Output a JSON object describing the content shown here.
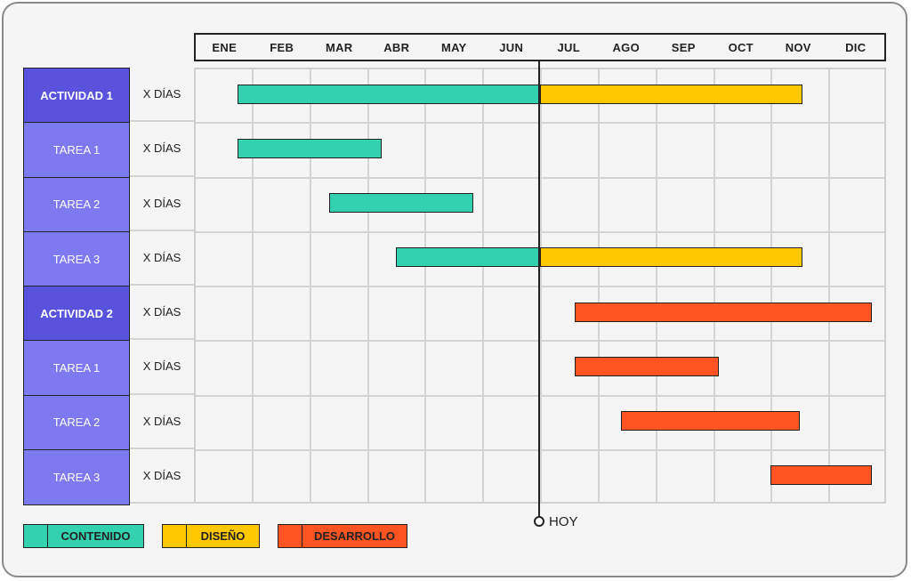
{
  "months": [
    "ENE",
    "FEB",
    "MAR",
    "ABR",
    "MAY",
    "JUN",
    "JUL",
    "AGO",
    "SEP",
    "OCT",
    "NOV",
    "DIC"
  ],
  "rows": [
    {
      "label": "ACTIVIDAD 1",
      "kind": "activity",
      "duration": "X DÍAS"
    },
    {
      "label": "TAREA 1",
      "kind": "task",
      "duration": "X DÍAS"
    },
    {
      "label": "TAREA 2",
      "kind": "task",
      "duration": "X DÍAS"
    },
    {
      "label": "TAREA 3",
      "kind": "task",
      "duration": "X DÍAS"
    },
    {
      "label": "ACTIVIDAD 2",
      "kind": "activity",
      "duration": "X DÍAS"
    },
    {
      "label": "TAREA 1",
      "kind": "task",
      "duration": "X DÍAS"
    },
    {
      "label": "TAREA 2",
      "kind": "task",
      "duration": "X DÍAS"
    },
    {
      "label": "TAREA 3",
      "kind": "task",
      "duration": "X DÍAS"
    }
  ],
  "bars": [
    {
      "row": 0,
      "start": 0.75,
      "end": 6.0,
      "phase": "contenido"
    },
    {
      "row": 0,
      "start": 6.0,
      "end": 10.55,
      "phase": "diseno"
    },
    {
      "row": 1,
      "start": 0.75,
      "end": 3.25,
      "phase": "contenido"
    },
    {
      "row": 2,
      "start": 2.35,
      "end": 4.85,
      "phase": "contenido"
    },
    {
      "row": 3,
      "start": 3.5,
      "end": 6.0,
      "phase": "contenido"
    },
    {
      "row": 3,
      "start": 6.0,
      "end": 10.55,
      "phase": "diseno"
    },
    {
      "row": 4,
      "start": 6.6,
      "end": 11.75,
      "phase": "desarrollo"
    },
    {
      "row": 5,
      "start": 6.6,
      "end": 9.1,
      "phase": "desarrollo"
    },
    {
      "row": 6,
      "start": 7.4,
      "end": 10.5,
      "phase": "desarrollo"
    },
    {
      "row": 7,
      "start": 10.0,
      "end": 11.75,
      "phase": "desarrollo"
    }
  ],
  "today": {
    "label": "HOY",
    "month_position": 6.0
  },
  "legend": [
    {
      "key": "contenido",
      "label": "CONTENIDO",
      "color": "#33d1ae"
    },
    {
      "key": "diseno",
      "label": "DISEÑO",
      "color": "#ffc800"
    },
    {
      "key": "desarrollo",
      "label": "DESARROLLO",
      "color": "#ff5422"
    }
  ]
}
